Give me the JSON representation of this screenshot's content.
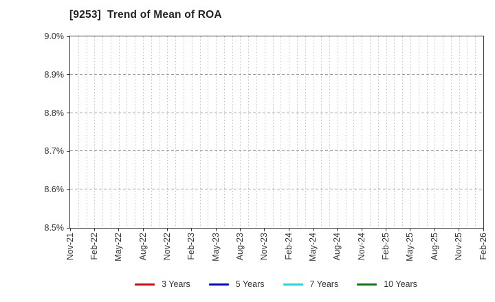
{
  "chart_data": {
    "type": "line",
    "title": "[9253]  Trend of Mean of ROA",
    "xlabel": "",
    "ylabel": "",
    "ylim": [
      8.5,
      9.0
    ],
    "y_unit": "%",
    "y_tick_labels": [
      "8.5%",
      "8.6%",
      "8.7%",
      "8.8%",
      "8.9%",
      "9.0%"
    ],
    "x_tick_labels": [
      "Nov-21",
      "Feb-22",
      "May-22",
      "Aug-22",
      "Nov-22",
      "Feb-23",
      "May-23",
      "Aug-23",
      "Nov-23",
      "Feb-24",
      "May-24",
      "Aug-24",
      "Nov-24",
      "Feb-25",
      "May-25",
      "Aug-25",
      "Nov-25",
      "Feb-26"
    ],
    "minor_vgrid_per_interval": 3,
    "grid": true,
    "legend_position": "bottom-center",
    "series": [
      {
        "name": "3 Years",
        "color": "#ee0000",
        "values": []
      },
      {
        "name": "5 Years",
        "color": "#0000ee",
        "values": []
      },
      {
        "name": "7 Years",
        "color": "#00e5ee",
        "values": []
      },
      {
        "name": "10 Years",
        "color": "#008000",
        "values": []
      }
    ],
    "note": "Plot area is empty — no data lines are drawn for any series within the visible y-range."
  }
}
